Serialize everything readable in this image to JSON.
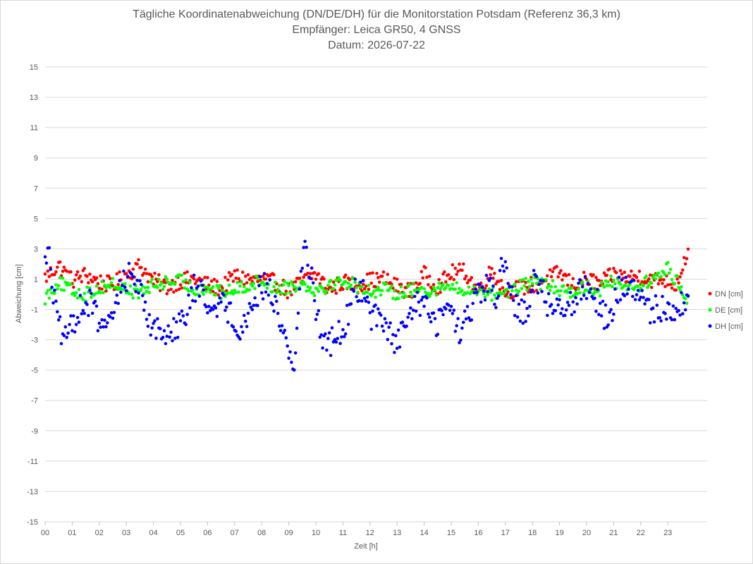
{
  "chart_data": {
    "type": "scatter",
    "title": "Tägliche Koordinatenabweichung (DN/DE/DH) für die Monitorstation Potsdam (Referenz 36,3 km)",
    "subtitle1": "Empfänger: Leica GR50, 4 GNSS",
    "subtitle2": "Datum: 2026-07-22",
    "xlabel": "Zeit [h]",
    "ylabel": "Abweichung [cm]",
    "xlim": [
      0,
      24
    ],
    "ylim": [
      -15,
      15
    ],
    "yticks": [
      "15",
      "13",
      "11",
      "9",
      "7",
      "5",
      "3",
      "1",
      "-1",
      "-3",
      "-5",
      "-7",
      "-9",
      "-11",
      "-13",
      "-15"
    ],
    "xticks": [
      "00",
      "01",
      "02",
      "03",
      "04",
      "05",
      "06",
      "07",
      "08",
      "09",
      "10",
      "11",
      "12",
      "13",
      "14",
      "15",
      "16",
      "17",
      "18",
      "19",
      "20",
      "21",
      "22",
      "23"
    ],
    "grid": "horizontal",
    "legend_position": "right",
    "sample_interval_h": 0.05,
    "series": [
      {
        "name": "DN [cm]",
        "color": "#ff0000",
        "anchors": [
          [
            0,
            1.1
          ],
          [
            0.5,
            1.9
          ],
          [
            0.8,
            1.3
          ],
          [
            1,
            0.9
          ],
          [
            1.5,
            1.3
          ],
          [
            2,
            0.8
          ],
          [
            2.5,
            0.6
          ],
          [
            3,
            1.3
          ],
          [
            3.5,
            1.9
          ],
          [
            4,
            0.9
          ],
          [
            4.5,
            0.5
          ],
          [
            5,
            0.9
          ],
          [
            5.5,
            1.0
          ],
          [
            6,
            0.6
          ],
          [
            6.5,
            0.4
          ],
          [
            7,
            1.2
          ],
          [
            7.5,
            1.0
          ],
          [
            8,
            0.9
          ],
          [
            8.5,
            0.8
          ],
          [
            9,
            0.2
          ],
          [
            9.3,
            0.6
          ],
          [
            9.8,
            1.2
          ],
          [
            10,
            1.3
          ],
          [
            10.5,
            0.3
          ],
          [
            11,
            0.8
          ],
          [
            11.5,
            0.6
          ],
          [
            12,
            0.9
          ],
          [
            12.5,
            1.0
          ],
          [
            13,
            0.5
          ],
          [
            13.5,
            0.2
          ],
          [
            14,
            1.3
          ],
          [
            14.5,
            0.5
          ],
          [
            15,
            1.4
          ],
          [
            15.5,
            1.5
          ],
          [
            16,
            0.2
          ],
          [
            16.5,
            1.6
          ],
          [
            17,
            0.2
          ],
          [
            17.5,
            0.4
          ],
          [
            18,
            0.6
          ],
          [
            18.5,
            1.0
          ],
          [
            19,
            1.4
          ],
          [
            19.5,
            0.6
          ],
          [
            20,
            1.0
          ],
          [
            20.5,
            0.7
          ],
          [
            21,
            1.3
          ],
          [
            21.5,
            1.1
          ],
          [
            22,
            1.2
          ],
          [
            22.5,
            0.9
          ],
          [
            23,
            1.0
          ],
          [
            23.3,
            0.6
          ],
          [
            23.6,
            2.2
          ],
          [
            23.75,
            2.8
          ]
        ],
        "values": []
      },
      {
        "name": "DE [cm]",
        "color": "#00ff00",
        "anchors": [
          [
            0,
            -0.2
          ],
          [
            0.5,
            0.8
          ],
          [
            1,
            0.2
          ],
          [
            1.5,
            0.0
          ],
          [
            2,
            0.4
          ],
          [
            2.5,
            0.7
          ],
          [
            3,
            0.3
          ],
          [
            3.5,
            0.1
          ],
          [
            4,
            0.6
          ],
          [
            4.5,
            0.8
          ],
          [
            5,
            0.9
          ],
          [
            5.5,
            0.3
          ],
          [
            6,
            0.4
          ],
          [
            6.5,
            0.1
          ],
          [
            7,
            0.3
          ],
          [
            7.5,
            0.6
          ],
          [
            8,
            0.9
          ],
          [
            8.5,
            0.4
          ],
          [
            9,
            0.5
          ],
          [
            9.5,
            0.7
          ],
          [
            10,
            0.3
          ],
          [
            10.5,
            0.6
          ],
          [
            11,
            0.9
          ],
          [
            11.5,
            0.6
          ],
          [
            12,
            0.2
          ],
          [
            12.5,
            0.3
          ],
          [
            13,
            0.1
          ],
          [
            13.5,
            0.3
          ],
          [
            14,
            0.2
          ],
          [
            14.5,
            0.4
          ],
          [
            15,
            0.5
          ],
          [
            15.5,
            0.1
          ],
          [
            16,
            0.4
          ],
          [
            16.5,
            0.0
          ],
          [
            17,
            0.2
          ],
          [
            17.5,
            0.4
          ],
          [
            18,
            0.9
          ],
          [
            18.5,
            0.6
          ],
          [
            19,
            0.3
          ],
          [
            19.5,
            0.2
          ],
          [
            20,
            0.5
          ],
          [
            20.5,
            0.3
          ],
          [
            21,
            0.9
          ],
          [
            21.5,
            0.5
          ],
          [
            22,
            0.6
          ],
          [
            22.5,
            1.0
          ],
          [
            23,
            1.7
          ],
          [
            23.5,
            0.4
          ],
          [
            23.75,
            -0.3
          ]
        ],
        "values": []
      },
      {
        "name": "DH [cm]",
        "color": "#0000ff",
        "anchors": [
          [
            0,
            2.8
          ],
          [
            0.15,
            2.4
          ],
          [
            0.3,
            0.2
          ],
          [
            0.5,
            -2.2
          ],
          [
            0.8,
            -3.2
          ],
          [
            1,
            -2.0
          ],
          [
            1.3,
            -0.8
          ],
          [
            1.7,
            -0.6
          ],
          [
            2,
            -1.8
          ],
          [
            2.3,
            -2.6
          ],
          [
            2.6,
            -0.6
          ],
          [
            2.9,
            1.0
          ],
          [
            3.2,
            1.4
          ],
          [
            3.5,
            0.2
          ],
          [
            3.9,
            -1.8
          ],
          [
            4.3,
            -2.8
          ],
          [
            4.7,
            -2.2
          ],
          [
            5.2,
            -1.6
          ],
          [
            5.5,
            0.5
          ],
          [
            5.7,
            0.2
          ],
          [
            6,
            -0.7
          ],
          [
            6.5,
            -0.5
          ],
          [
            7,
            -1.7
          ],
          [
            7.3,
            -2.3
          ],
          [
            7.6,
            -0.8
          ],
          [
            7.9,
            0.2
          ],
          [
            8.2,
            0.8
          ],
          [
            8.5,
            -0.8
          ],
          [
            8.8,
            -2.4
          ],
          [
            9.1,
            -4.4
          ],
          [
            9.2,
            -4.8
          ],
          [
            9.4,
            0.0
          ],
          [
            9.6,
            3.8
          ],
          [
            9.75,
            2.0
          ],
          [
            10,
            -0.8
          ],
          [
            10.2,
            -2.7
          ],
          [
            10.5,
            -3.2
          ],
          [
            10.8,
            -2.8
          ],
          [
            11.1,
            -1.8
          ],
          [
            11.5,
            0.4
          ],
          [
            11.8,
            0.2
          ],
          [
            12,
            -1.4
          ],
          [
            12.5,
            -1.6
          ],
          [
            12.9,
            -3.4
          ],
          [
            13.3,
            -2.4
          ],
          [
            13.6,
            -0.6
          ],
          [
            14,
            -0.6
          ],
          [
            14.4,
            -2.0
          ],
          [
            14.7,
            -1.4
          ],
          [
            15,
            -0.8
          ],
          [
            15.3,
            -2.8
          ],
          [
            15.6,
            -1.4
          ],
          [
            16,
            -0.2
          ],
          [
            16.4,
            0.6
          ],
          [
            16.7,
            -0.6
          ],
          [
            16.9,
            2.2
          ],
          [
            17.1,
            0.5
          ],
          [
            17.4,
            -0.8
          ],
          [
            17.8,
            -1.2
          ],
          [
            18,
            1.0
          ],
          [
            18.3,
            0.6
          ],
          [
            18.6,
            -0.8
          ],
          [
            19,
            -0.6
          ],
          [
            19.4,
            -0.6
          ],
          [
            19.8,
            0.2
          ],
          [
            20,
            0.6
          ],
          [
            20.2,
            0.5
          ],
          [
            20.5,
            -1.0
          ],
          [
            20.8,
            -1.8
          ],
          [
            21.2,
            0.4
          ],
          [
            21.6,
            0.4
          ],
          [
            22,
            -0.2
          ],
          [
            22.3,
            -1.2
          ],
          [
            22.6,
            -0.9
          ],
          [
            23,
            -1.0
          ],
          [
            23.4,
            -0.8
          ],
          [
            23.75,
            -0.5
          ]
        ],
        "values": []
      }
    ]
  }
}
